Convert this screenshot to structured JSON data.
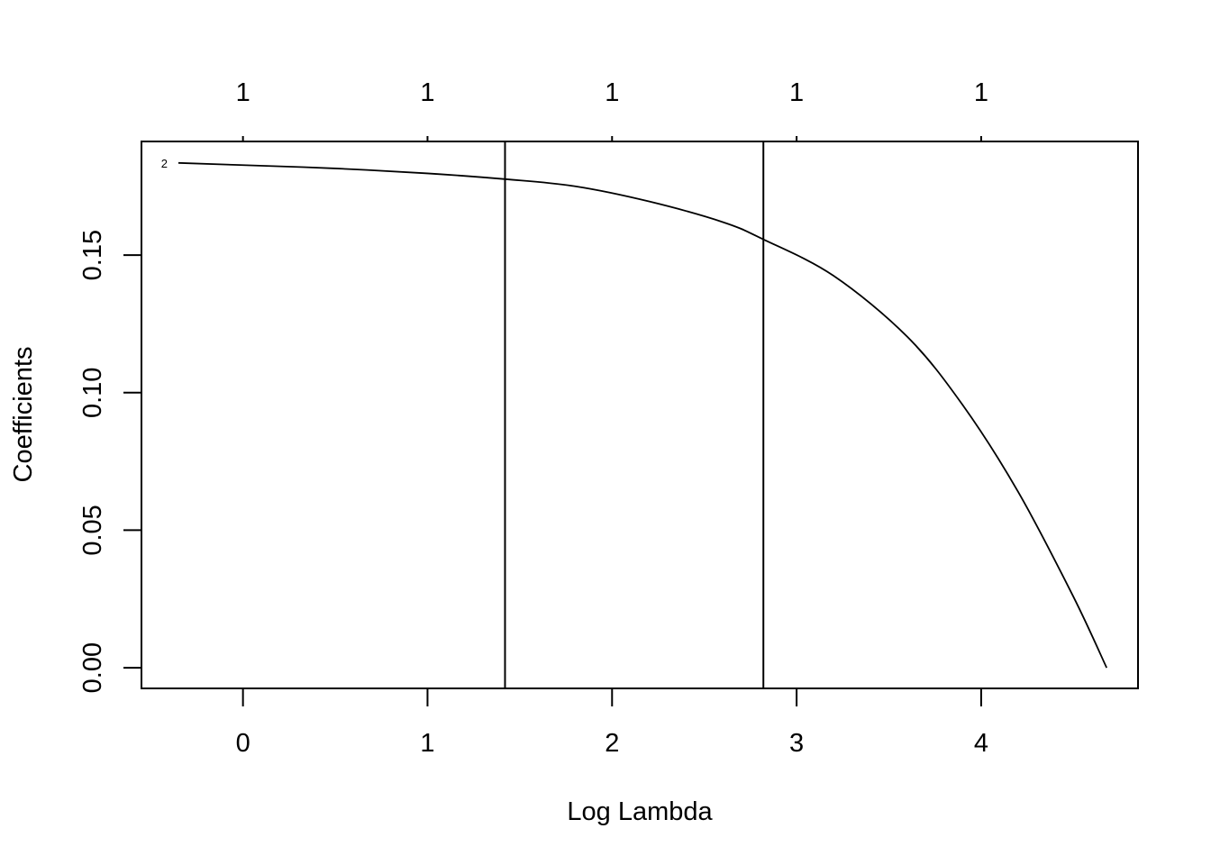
{
  "chart_data": {
    "type": "line",
    "title": "",
    "xlabel": "Log Lambda",
    "ylabel": "Coefficients",
    "xlim": [
      -0.55,
      4.85
    ],
    "ylim": [
      -0.0075,
      0.1913
    ],
    "x_ticks": [
      0,
      1,
      2,
      3,
      4
    ],
    "x_tick_labels": [
      "0",
      "1",
      "2",
      "3",
      "4"
    ],
    "y_ticks": [
      0.0,
      0.05,
      0.1,
      0.15
    ],
    "y_tick_labels": [
      "0.00",
      "0.05",
      "0.10",
      "0.15"
    ],
    "top_axis": {
      "ticks": [
        0,
        1,
        2,
        3,
        4
      ],
      "labels": [
        "1",
        "1",
        "1",
        "1",
        "1"
      ]
    },
    "grid": false,
    "legend": "none",
    "series": [
      {
        "label": "2",
        "color": "#000000",
        "x": [
          -0.35,
          0.0,
          0.5,
          1.0,
          1.42,
          1.8,
          2.2,
          2.6,
          2.82,
          3.2,
          3.6,
          3.9,
          4.2,
          4.5,
          4.68
        ],
        "y": [
          0.1835,
          0.1827,
          0.1815,
          0.1797,
          0.1776,
          0.175,
          0.1695,
          0.162,
          0.1557,
          0.1425,
          0.1203,
          0.0955,
          0.064,
          0.0258,
          0.0
        ]
      }
    ],
    "vlines": [
      1.42,
      2.82
    ]
  }
}
